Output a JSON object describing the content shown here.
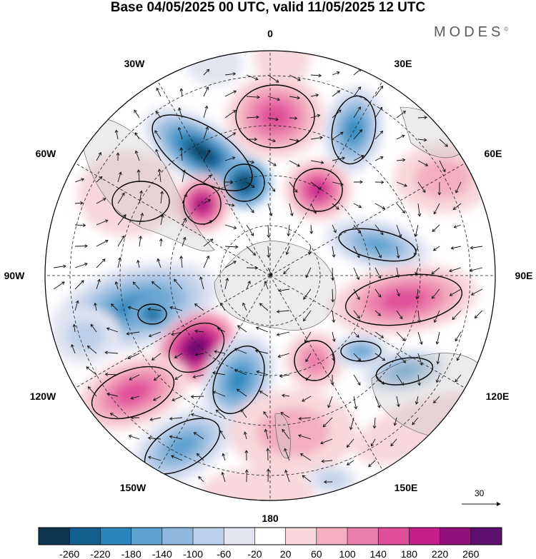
{
  "header": {
    "title": "Base 04/05/2025 00 UTC, valid 11/05/2025 12 UTC",
    "brand": "MODES",
    "brand_mark": "©"
  },
  "map": {
    "projection": "south polar stereographic",
    "longitude_labels": {
      "top": "0",
      "top_left": "30W",
      "top_right": "30E",
      "upper_left": "60W",
      "upper_right": "60E",
      "left": "90W",
      "right": "90E",
      "lower_left": "120W",
      "lower_right": "120E",
      "bottom_left": "150W",
      "bottom_right": "150E",
      "bottom": "180"
    },
    "reference_vector": {
      "value": "30"
    }
  },
  "colorbar": {
    "ticks": [
      "-260",
      "-220",
      "-180",
      "-140",
      "-100",
      "-60",
      "-20",
      "20",
      "60",
      "100",
      "140",
      "180",
      "220",
      "260"
    ],
    "colors": [
      "#0c3650",
      "#13608f",
      "#2b86bd",
      "#5ea3cf",
      "#8fb8de",
      "#bdd0e9",
      "#e2e4f2",
      "#ffffff",
      "#f8d8dc",
      "#f3aec0",
      "#eb7fac",
      "#df4f99",
      "#c41f8a",
      "#92107b",
      "#5f0f6d"
    ]
  }
}
